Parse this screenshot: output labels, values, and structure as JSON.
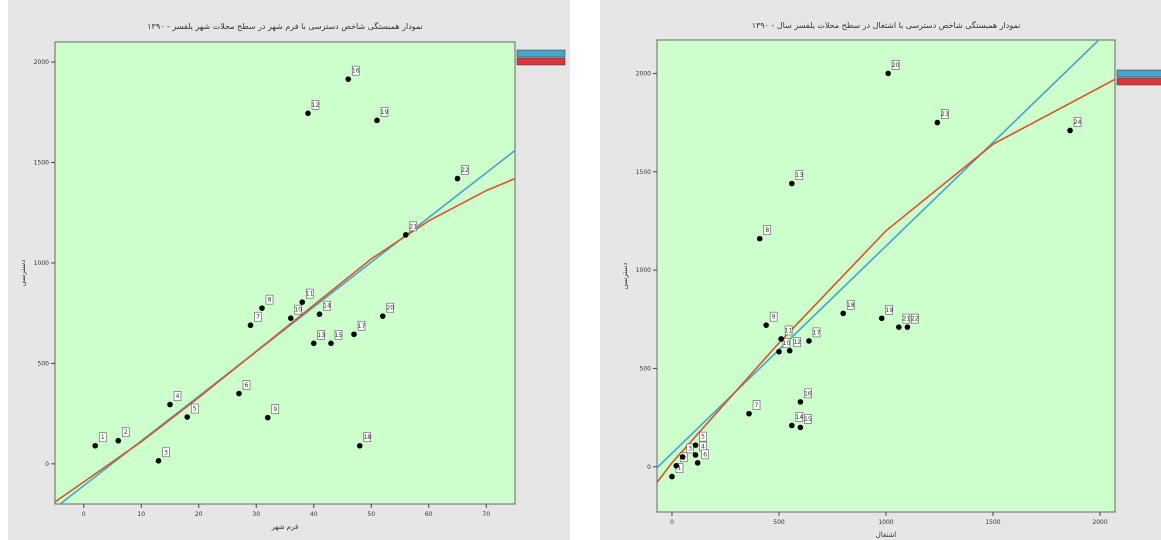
{
  "chart_data": [
    {
      "type": "scatter",
      "title": "نمودار همبستگی شاخص دسترسی با فرم شهر در سطح محلات شهر یلفسر - ۱۳۹۰",
      "xlabel": "فرم شهر",
      "ylabel": "دسترسی",
      "xlim": [
        -5,
        75
      ],
      "ylim": [
        -200,
        2100
      ],
      "x_ticks": [
        "0",
        "10",
        "20",
        "30",
        "40",
        "50",
        "60",
        "70"
      ],
      "y_ticks": [
        "0",
        "500",
        "1000",
        "1500",
        "2000"
      ],
      "points": [
        {
          "x": 2,
          "y": 90,
          "label": "1"
        },
        {
          "x": 6,
          "y": 115,
          "label": "2"
        },
        {
          "x": 13,
          "y": 15,
          "label": "3"
        },
        {
          "x": 15,
          "y": 295,
          "label": "4"
        },
        {
          "x": 18,
          "y": 233,
          "label": "5"
        },
        {
          "x": 27,
          "y": 350,
          "label": "6"
        },
        {
          "x": 29,
          "y": 690,
          "label": "7"
        },
        {
          "x": 31,
          "y": 775,
          "label": "8"
        },
        {
          "x": 32,
          "y": 230,
          "label": "9"
        },
        {
          "x": 36,
          "y": 725,
          "label": "10"
        },
        {
          "x": 38,
          "y": 805,
          "label": "11"
        },
        {
          "x": 39,
          "y": 1745,
          "label": "12"
        },
        {
          "x": 40,
          "y": 600,
          "label": "13"
        },
        {
          "x": 41,
          "y": 745,
          "label": "14"
        },
        {
          "x": 43,
          "y": 600,
          "label": "15"
        },
        {
          "x": 46,
          "y": 1915,
          "label": "16"
        },
        {
          "x": 47,
          "y": 645,
          "label": "17"
        },
        {
          "x": 48,
          "y": 90,
          "label": "18"
        },
        {
          "x": 51,
          "y": 1710,
          "label": "19"
        },
        {
          "x": 52,
          "y": 735,
          "label": "20"
        },
        {
          "x": 56,
          "y": 1140,
          "label": "21"
        },
        {
          "x": 65,
          "y": 1420,
          "label": "22"
        }
      ],
      "fit_lines": [
        {
          "color": "#4aa3c8",
          "x": [
            -5,
            75
          ],
          "y": [
            -220,
            1560
          ]
        },
        {
          "color": "#d9542b",
          "x": [
            -5,
            0,
            10,
            20,
            30,
            40,
            50,
            60,
            70,
            75
          ],
          "y": [
            -190,
            -90,
            110,
            330,
            560,
            790,
            1020,
            1210,
            1360,
            1420
          ]
        }
      ],
      "legend": {
        "position": "right",
        "colors": [
          "#4aa3c8",
          "#d9363e"
        ]
      },
      "grid": false
    },
    {
      "type": "scatter",
      "title": "نمودار همبستگی شاخص دسترسی با اشتغال در سطح محلات یلفسر سال - ۱۳۹۰",
      "xlabel": "اشتغال",
      "ylabel": "دسترسی",
      "xlim": [
        -70,
        2070
      ],
      "ylim": [
        -230,
        2170
      ],
      "x_ticks": [
        "0",
        "500",
        "1000",
        "1500",
        "2000"
      ],
      "y_ticks": [
        "0",
        "500",
        "1000",
        "1500",
        "2000"
      ],
      "points": [
        {
          "x": 0,
          "y": -50,
          "label": "1"
        },
        {
          "x": 20,
          "y": 5,
          "label": "2"
        },
        {
          "x": 50,
          "y": 50,
          "label": "3"
        },
        {
          "x": 110,
          "y": 60,
          "label": "4"
        },
        {
          "x": 110,
          "y": 110,
          "label": "5"
        },
        {
          "x": 120,
          "y": 20,
          "label": "6"
        },
        {
          "x": 360,
          "y": 270,
          "label": "7"
        },
        {
          "x": 410,
          "y": 1160,
          "label": "8"
        },
        {
          "x": 440,
          "y": 720,
          "label": "9"
        },
        {
          "x": 500,
          "y": 585,
          "label": "10"
        },
        {
          "x": 510,
          "y": 650,
          "label": "11"
        },
        {
          "x": 550,
          "y": 590,
          "label": "12"
        },
        {
          "x": 560,
          "y": 1440,
          "label": "13"
        },
        {
          "x": 560,
          "y": 210,
          "label": "14"
        },
        {
          "x": 600,
          "y": 200,
          "label": "15"
        },
        {
          "x": 600,
          "y": 330,
          "label": "16"
        },
        {
          "x": 640,
          "y": 640,
          "label": "17"
        },
        {
          "x": 800,
          "y": 780,
          "label": "18"
        },
        {
          "x": 980,
          "y": 755,
          "label": "19"
        },
        {
          "x": 1010,
          "y": 2000,
          "label": "20"
        },
        {
          "x": 1060,
          "y": 710,
          "label": "21"
        },
        {
          "x": 1100,
          "y": 710,
          "label": "22"
        },
        {
          "x": 1240,
          "y": 1750,
          "label": "23"
        },
        {
          "x": 1860,
          "y": 1710,
          "label": "24"
        }
      ],
      "fit_lines": [
        {
          "color": "#4aa3c8",
          "x": [
            -70,
            2070
          ],
          "y": [
            -5,
            2250
          ]
        },
        {
          "color": "#d9542b",
          "x": [
            -70,
            0,
            500,
            1000,
            1500,
            2070
          ],
          "y": [
            -80,
            20,
            630,
            1200,
            1640,
            1970
          ]
        }
      ],
      "legend": {
        "position": "right",
        "colors": [
          "#4aa3c8",
          "#d9363e"
        ]
      },
      "grid": false
    }
  ]
}
